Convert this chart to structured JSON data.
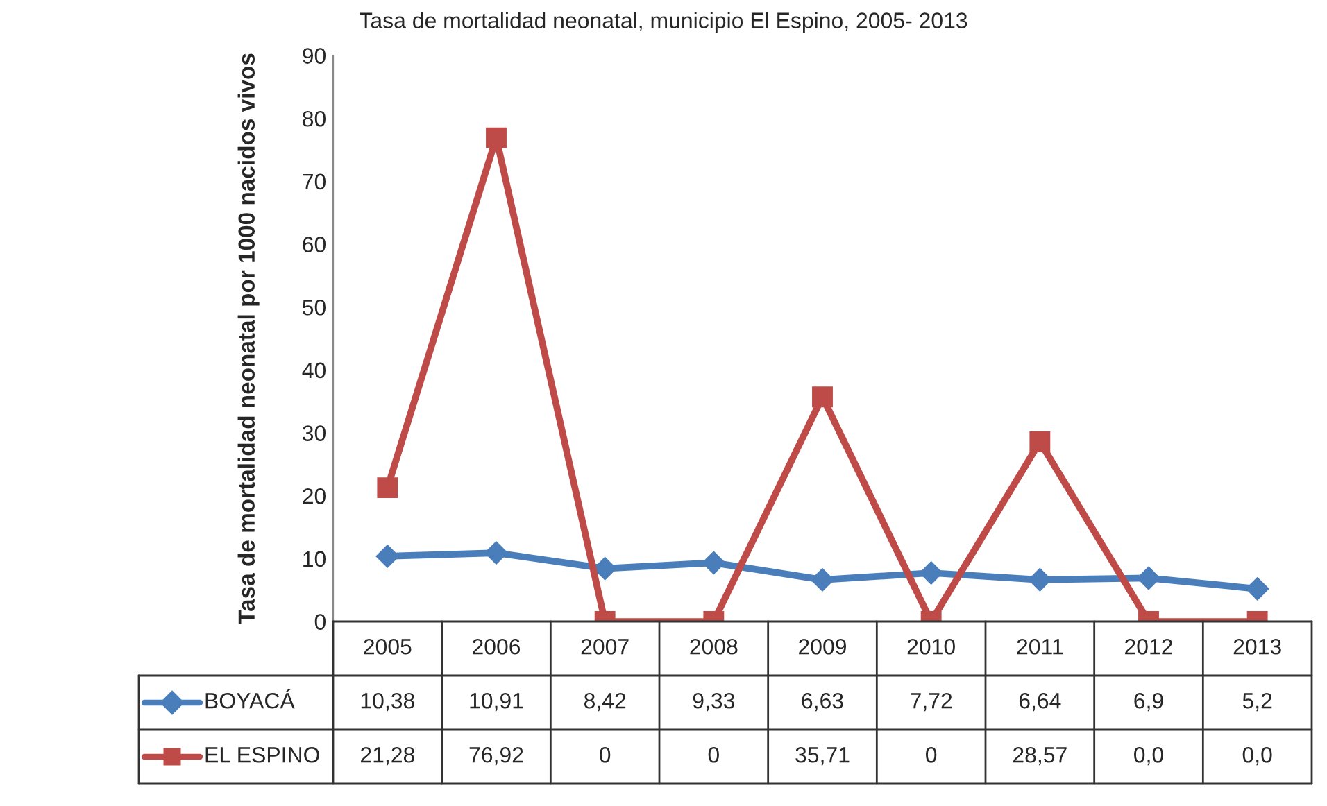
{
  "chart_data": {
    "type": "line",
    "title": "Tasa de mortalidad neonatal, municipio El Espino, 2005- 2013",
    "ylabel": "Tasa de mortalidad neonatal por 1000 nacidos vivos",
    "categories": [
      "2005",
      "2006",
      "2007",
      "2008",
      "2009",
      "2010",
      "2011",
      "2012",
      "2013"
    ],
    "series": [
      {
        "name": "BOYACÁ",
        "color": "#4a7ebb",
        "marker": "diamond",
        "values": [
          10.38,
          10.91,
          8.42,
          9.33,
          6.63,
          7.72,
          6.64,
          6.9,
          5.2
        ],
        "value_labels": [
          "10,38",
          "10,91",
          "8,42",
          "9,33",
          "6,63",
          "7,72",
          "6,64",
          "6,9",
          "5,2"
        ]
      },
      {
        "name": "EL ESPINO",
        "color": "#be4b48",
        "marker": "square",
        "values": [
          21.28,
          76.92,
          0,
          0,
          35.71,
          0,
          28.57,
          0,
          0
        ],
        "value_labels": [
          "21,28",
          "76,92",
          "0",
          "0",
          "35,71",
          "0",
          "28,57",
          "0,0",
          "0,0"
        ]
      }
    ],
    "ylim": [
      0,
      90
    ],
    "yticks": [
      0,
      10,
      20,
      30,
      40,
      50,
      60,
      70,
      80,
      90
    ],
    "grid": false,
    "legend": "bottom",
    "line_style": "solid"
  }
}
